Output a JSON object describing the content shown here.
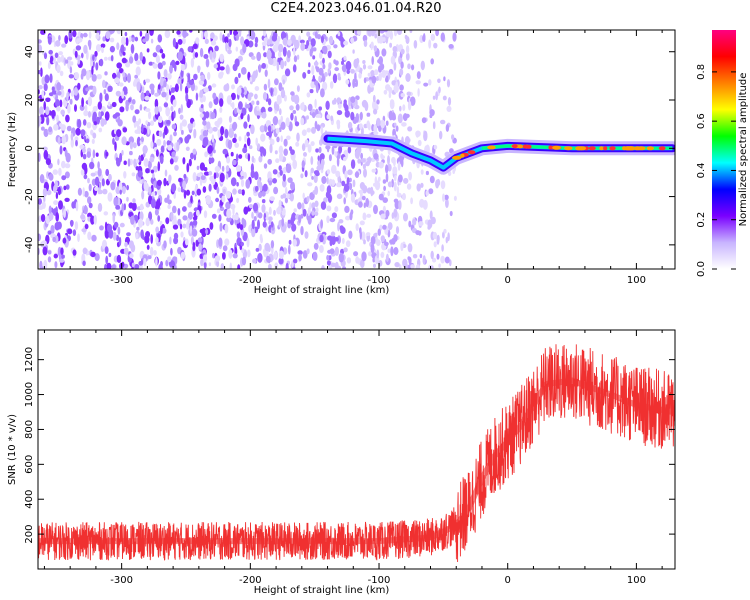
{
  "title": "C2E4.2023.046.01.04.R20",
  "chart_data": [
    {
      "type": "heatmap",
      "title": "",
      "xlabel": "Height of straight line (km)",
      "ylabel": "Frequency (Hz)",
      "xlim": [
        -365,
        130
      ],
      "ylim": [
        -50,
        49
      ],
      "x_ticks": [
        -300,
        -200,
        -100,
        0,
        100
      ],
      "y_ticks": [
        -40,
        -20,
        0,
        20,
        40
      ],
      "ridge": [
        {
          "x": -140,
          "y": 4
        },
        {
          "x": -110,
          "y": 3
        },
        {
          "x": -90,
          "y": 2
        },
        {
          "x": -75,
          "y": -2
        },
        {
          "x": -60,
          "y": -5
        },
        {
          "x": -50,
          "y": -8
        },
        {
          "x": -40,
          "y": -4
        },
        {
          "x": -20,
          "y": 0
        },
        {
          "x": 0,
          "y": 1
        },
        {
          "x": 50,
          "y": 0
        },
        {
          "x": 128,
          "y": 0
        }
      ],
      "colorbar": {
        "label": "Normalized spectral amplitude",
        "range": [
          0,
          0.97
        ],
        "ticks": [
          "0.0",
          "0.2",
          "0.4",
          "0.6",
          "0.8"
        ],
        "colors": [
          "#ffffff",
          "#c8b4ff",
          "#7a00ff",
          "#0000ff",
          "#00ffff",
          "#00ff00",
          "#ffff00",
          "#ff8000",
          "#ff0000",
          "#ff0080"
        ]
      }
    },
    {
      "type": "line",
      "title": "",
      "xlabel": "Height of straight line (km)",
      "ylabel": "SNR (10 * v/v)",
      "xlim": [
        -365,
        130
      ],
      "ylim": [
        0,
        1370
      ],
      "x_ticks": [
        -300,
        -200,
        -100,
        0,
        100
      ],
      "y_ticks": [
        200,
        400,
        600,
        800,
        1000,
        1200
      ],
      "series": [
        {
          "color": "#f03030",
          "x": [
            -365,
            -300,
            -200,
            -100,
            -60,
            -40,
            -30,
            -20,
            -10,
            0,
            10,
            20,
            30,
            50,
            80,
            100,
            128
          ],
          "y": [
            160,
            160,
            160,
            160,
            180,
            250,
            350,
            520,
            650,
            730,
            820,
            940,
            1060,
            1080,
            1000,
            940,
            900
          ]
        }
      ]
    }
  ]
}
